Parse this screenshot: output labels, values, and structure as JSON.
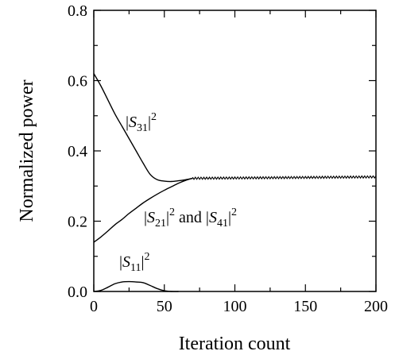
{
  "chart_data": {
    "type": "line",
    "xlabel": "Iteration count",
    "ylabel": "Normalized power",
    "xlim": [
      0,
      200
    ],
    "ylim": [
      0,
      0.8
    ],
    "x_ticks": [
      "0",
      "50",
      "100",
      "150",
      "200"
    ],
    "y_ticks": [
      "0.0",
      "0.2",
      "0.4",
      "0.6",
      "0.8"
    ],
    "grid": false,
    "legend": "none",
    "series": [
      {
        "key": "s31",
        "x": [
          0,
          5,
          10,
          15,
          20,
          25,
          30,
          35,
          40,
          45,
          50,
          55,
          60,
          65,
          70
        ],
        "y": [
          0.62,
          0.585,
          0.545,
          0.505,
          0.47,
          0.435,
          0.4,
          0.365,
          0.333,
          0.318,
          0.314,
          0.313,
          0.315,
          0.318,
          0.322
        ]
      },
      {
        "key": "s21_s41",
        "x": [
          0,
          5,
          10,
          15,
          20,
          25,
          30,
          35,
          40,
          45,
          50,
          55,
          60,
          65,
          70
        ],
        "y": [
          0.14,
          0.155,
          0.172,
          0.19,
          0.205,
          0.222,
          0.237,
          0.252,
          0.265,
          0.277,
          0.288,
          0.298,
          0.308,
          0.316,
          0.322
        ]
      },
      {
        "key": "s11",
        "x": [
          0,
          5,
          10,
          15,
          20,
          25,
          30,
          35,
          40,
          45,
          50,
          55,
          60
        ],
        "y": [
          0.0,
          0.003,
          0.012,
          0.022,
          0.027,
          0.028,
          0.027,
          0.025,
          0.017,
          0.008,
          0.002,
          0.0,
          0.0
        ]
      },
      {
        "key": "converged",
        "x": [
          70,
          200
        ],
        "y": [
          0.322,
          0.326
        ],
        "oscillation_amplitude": 0.006
      }
    ],
    "annotations": [
      {
        "key": "s31",
        "parts": [
          "|",
          "S",
          "31",
          "|",
          "2"
        ]
      },
      {
        "key": "s21_s41",
        "parts": [
          "|",
          "S",
          "21",
          "|",
          "2",
          " and ",
          "|",
          "S",
          "41",
          "|",
          "2"
        ]
      },
      {
        "key": "s11",
        "parts": [
          "|",
          "S",
          "11",
          "|",
          "2"
        ]
      }
    ]
  }
}
